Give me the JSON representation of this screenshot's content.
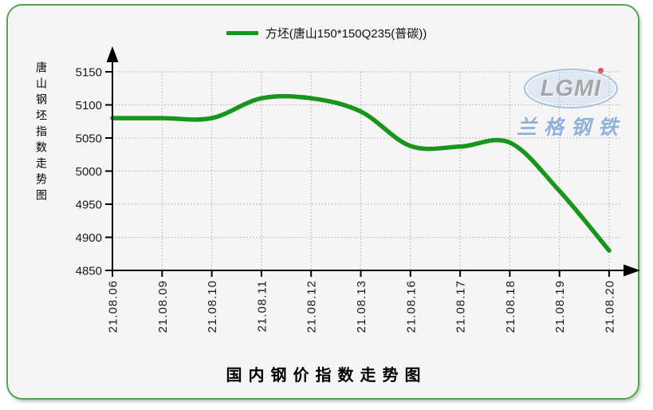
{
  "legend": {
    "series_label": "方坯(唐山150*150Q235(普碳))"
  },
  "y_axis_title": "唐山钢坯指数走势图",
  "bottom_title": "国内钢价指数走势图",
  "watermark": {
    "logo_text": "LGMI",
    "company_name": "兰格钢铁"
  },
  "colors": {
    "line": "#18951b",
    "panel_border": "#55a055",
    "panel_bg": "#f5f5f5",
    "grid": "#ababab",
    "axis": "#000000",
    "watermark_blue": "#86abd7",
    "logo_gray": "#9e9e9e",
    "logo_red": "#e04545"
  },
  "chart_data": {
    "type": "line",
    "title": "国内钢价指数走势图",
    "y_axis_title": "唐山钢坯指数走势图",
    "x": [
      "21.08.06",
      "21.08.09",
      "21.08.10",
      "21.08.11",
      "21.08.12",
      "21.08.13",
      "21.08.16",
      "21.08.17",
      "21.08.18",
      "21.08.19",
      "21.08.20"
    ],
    "series": [
      {
        "name": "方坯(唐山150*150Q235(普碳))",
        "color": "#18951b",
        "values": [
          5080,
          5080,
          5080,
          5110,
          5110,
          5090,
          5038,
          5037,
          5043,
          4970,
          4880
        ]
      }
    ],
    "ylim": [
      4850,
      5150
    ],
    "yticks": [
      4850,
      4900,
      4950,
      5000,
      5050,
      5100,
      5150
    ],
    "grid": true,
    "legend_position": "top",
    "curve": "smooth"
  }
}
